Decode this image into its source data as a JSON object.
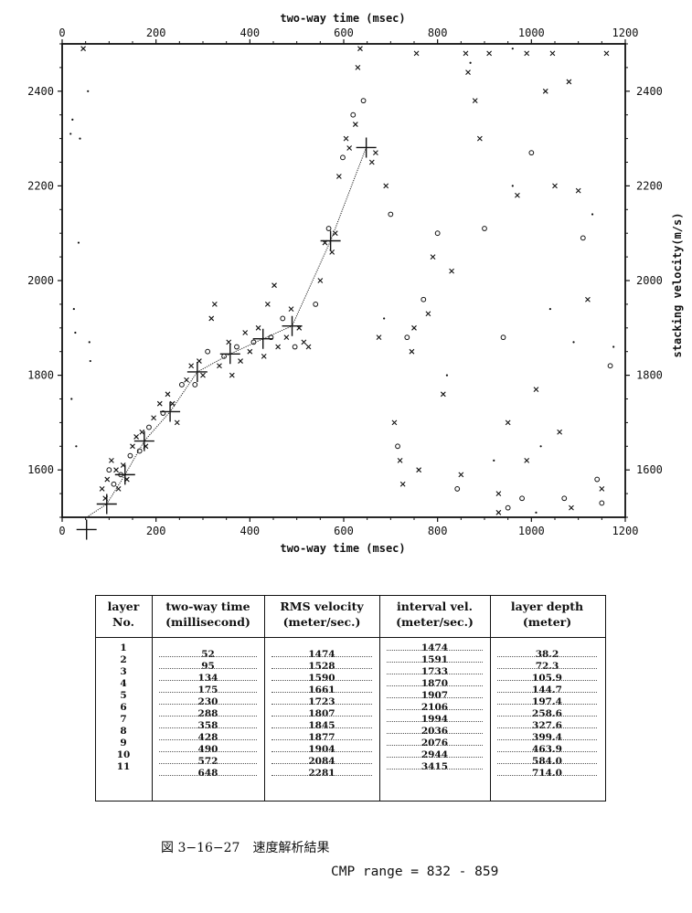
{
  "chart_data": {
    "type": "scatter",
    "xlabel_top": "two-way time (msec)",
    "xlabel_bottom": "two-way time (msec)",
    "ylabel_right": "stacking velocity(m/s)",
    "xlim": [
      0,
      1200
    ],
    "ylim": [
      1500,
      2500
    ],
    "x_ticks": [
      "0",
      "200",
      "400",
      "600",
      "800",
      "1000",
      "1200"
    ],
    "y_ticks_left": [
      "1600",
      "1800",
      "2000",
      "2200",
      "2400"
    ],
    "y_ticks_right": [
      "1600",
      "1800",
      "2000",
      "2200",
      "2400"
    ],
    "picked_velocity_function": {
      "time_ms": [
        52,
        95,
        134,
        175,
        230,
        288,
        358,
        428,
        490,
        572,
        648
      ],
      "rms_velocity": [
        1474,
        1528,
        1590,
        1661,
        1723,
        1807,
        1845,
        1877,
        1904,
        2084,
        2281
      ]
    },
    "semblance_points": [
      {
        "t": 18,
        "v": 2310,
        "m": "dot"
      },
      {
        "t": 22,
        "v": 2340,
        "m": "dot"
      },
      {
        "t": 25,
        "v": 1940,
        "m": "dot"
      },
      {
        "t": 28,
        "v": 1890,
        "m": "dot"
      },
      {
        "t": 30,
        "v": 1650,
        "m": "dot"
      },
      {
        "t": 35,
        "v": 2080,
        "m": "dot"
      },
      {
        "t": 38,
        "v": 2300,
        "m": "dot"
      },
      {
        "t": 45,
        "v": 2490,
        "m": "x"
      },
      {
        "t": 55,
        "v": 2400,
        "m": "dot"
      },
      {
        "t": 58,
        "v": 1870,
        "m": "dot"
      },
      {
        "t": 60,
        "v": 1830,
        "m": "dot"
      },
      {
        "t": 20,
        "v": 1750,
        "m": "dot"
      },
      {
        "t": 85,
        "v": 1560,
        "m": "x"
      },
      {
        "t": 92,
        "v": 1540,
        "m": "x"
      },
      {
        "t": 96,
        "v": 1580,
        "m": "x"
      },
      {
        "t": 100,
        "v": 1600,
        "m": "o"
      },
      {
        "t": 105,
        "v": 1620,
        "m": "x"
      },
      {
        "t": 110,
        "v": 1570,
        "m": "o"
      },
      {
        "t": 115,
        "v": 1600,
        "m": "x"
      },
      {
        "t": 120,
        "v": 1560,
        "m": "x"
      },
      {
        "t": 125,
        "v": 1590,
        "m": "o"
      },
      {
        "t": 130,
        "v": 1610,
        "m": "x"
      },
      {
        "t": 138,
        "v": 1580,
        "m": "x"
      },
      {
        "t": 145,
        "v": 1630,
        "m": "o"
      },
      {
        "t": 150,
        "v": 1650,
        "m": "x"
      },
      {
        "t": 158,
        "v": 1670,
        "m": "x"
      },
      {
        "t": 165,
        "v": 1640,
        "m": "o"
      },
      {
        "t": 170,
        "v": 1680,
        "m": "x"
      },
      {
        "t": 178,
        "v": 1650,
        "m": "x"
      },
      {
        "t": 185,
        "v": 1690,
        "m": "o"
      },
      {
        "t": 195,
        "v": 1710,
        "m": "x"
      },
      {
        "t": 208,
        "v": 1740,
        "m": "x"
      },
      {
        "t": 215,
        "v": 1720,
        "m": "o"
      },
      {
        "t": 225,
        "v": 1760,
        "m": "x"
      },
      {
        "t": 235,
        "v": 1740,
        "m": "x"
      },
      {
        "t": 245,
        "v": 1700,
        "m": "x"
      },
      {
        "t": 255,
        "v": 1780,
        "m": "o"
      },
      {
        "t": 265,
        "v": 1790,
        "m": "x"
      },
      {
        "t": 275,
        "v": 1820,
        "m": "x"
      },
      {
        "t": 283,
        "v": 1780,
        "m": "o"
      },
      {
        "t": 292,
        "v": 1830,
        "m": "x"
      },
      {
        "t": 300,
        "v": 1800,
        "m": "x"
      },
      {
        "t": 310,
        "v": 1850,
        "m": "o"
      },
      {
        "t": 318,
        "v": 1920,
        "m": "x"
      },
      {
        "t": 325,
        "v": 1950,
        "m": "x"
      },
      {
        "t": 335,
        "v": 1820,
        "m": "x"
      },
      {
        "t": 345,
        "v": 1840,
        "m": "o"
      },
      {
        "t": 355,
        "v": 1870,
        "m": "x"
      },
      {
        "t": 362,
        "v": 1800,
        "m": "x"
      },
      {
        "t": 372,
        "v": 1860,
        "m": "o"
      },
      {
        "t": 380,
        "v": 1830,
        "m": "x"
      },
      {
        "t": 390,
        "v": 1890,
        "m": "x"
      },
      {
        "t": 400,
        "v": 1850,
        "m": "x"
      },
      {
        "t": 408,
        "v": 1870,
        "m": "o"
      },
      {
        "t": 418,
        "v": 1900,
        "m": "x"
      },
      {
        "t": 430,
        "v": 1840,
        "m": "x"
      },
      {
        "t": 438,
        "v": 1950,
        "m": "x"
      },
      {
        "t": 445,
        "v": 1880,
        "m": "o"
      },
      {
        "t": 452,
        "v": 1990,
        "m": "x"
      },
      {
        "t": 460,
        "v": 1860,
        "m": "x"
      },
      {
        "t": 470,
        "v": 1920,
        "m": "o"
      },
      {
        "t": 478,
        "v": 1880,
        "m": "x"
      },
      {
        "t": 488,
        "v": 1940,
        "m": "x"
      },
      {
        "t": 496,
        "v": 1860,
        "m": "o"
      },
      {
        "t": 505,
        "v": 1900,
        "m": "x"
      },
      {
        "t": 515,
        "v": 1870,
        "m": "x"
      },
      {
        "t": 525,
        "v": 1860,
        "m": "x"
      },
      {
        "t": 540,
        "v": 1950,
        "m": "o"
      },
      {
        "t": 550,
        "v": 2000,
        "m": "x"
      },
      {
        "t": 560,
        "v": 2080,
        "m": "x"
      },
      {
        "t": 568,
        "v": 2110,
        "m": "o"
      },
      {
        "t": 575,
        "v": 2060,
        "m": "x"
      },
      {
        "t": 582,
        "v": 2100,
        "m": "x"
      },
      {
        "t": 590,
        "v": 2220,
        "m": "x"
      },
      {
        "t": 598,
        "v": 2260,
        "m": "o"
      },
      {
        "t": 605,
        "v": 2300,
        "m": "x"
      },
      {
        "t": 612,
        "v": 2280,
        "m": "x"
      },
      {
        "t": 620,
        "v": 2350,
        "m": "o"
      },
      {
        "t": 625,
        "v": 2330,
        "m": "x"
      },
      {
        "t": 630,
        "v": 2450,
        "m": "x"
      },
      {
        "t": 635,
        "v": 2490,
        "m": "x"
      },
      {
        "t": 642,
        "v": 2380,
        "m": "o"
      },
      {
        "t": 660,
        "v": 2250,
        "m": "x"
      },
      {
        "t": 668,
        "v": 2270,
        "m": "x"
      },
      {
        "t": 690,
        "v": 2200,
        "m": "x"
      },
      {
        "t": 700,
        "v": 2140,
        "m": "o"
      },
      {
        "t": 708,
        "v": 1700,
        "m": "x"
      },
      {
        "t": 715,
        "v": 1650,
        "m": "o"
      },
      {
        "t": 720,
        "v": 1620,
        "m": "x"
      },
      {
        "t": 726,
        "v": 1570,
        "m": "x"
      },
      {
        "t": 735,
        "v": 1880,
        "m": "o"
      },
      {
        "t": 745,
        "v": 1850,
        "m": "x"
      },
      {
        "t": 755,
        "v": 2480,
        "m": "x"
      },
      {
        "t": 760,
        "v": 1600,
        "m": "x"
      },
      {
        "t": 770,
        "v": 1960,
        "m": "o"
      },
      {
        "t": 780,
        "v": 1930,
        "m": "x"
      },
      {
        "t": 790,
        "v": 2050,
        "m": "x"
      },
      {
        "t": 800,
        "v": 2100,
        "m": "o"
      },
      {
        "t": 812,
        "v": 1760,
        "m": "x"
      },
      {
        "t": 820,
        "v": 1800,
        "m": "dot"
      },
      {
        "t": 830,
        "v": 2020,
        "m": "x"
      },
      {
        "t": 842,
        "v": 1560,
        "m": "o"
      },
      {
        "t": 850,
        "v": 1590,
        "m": "x"
      },
      {
        "t": 860,
        "v": 2480,
        "m": "x"
      },
      {
        "t": 870,
        "v": 2460,
        "m": "dot"
      },
      {
        "t": 880,
        "v": 2380,
        "m": "x"
      },
      {
        "t": 890,
        "v": 2300,
        "m": "x"
      },
      {
        "t": 900,
        "v": 2110,
        "m": "o"
      },
      {
        "t": 910,
        "v": 2480,
        "m": "x"
      },
      {
        "t": 920,
        "v": 1620,
        "m": "dot"
      },
      {
        "t": 930,
        "v": 1550,
        "m": "x"
      },
      {
        "t": 940,
        "v": 1880,
        "m": "o"
      },
      {
        "t": 950,
        "v": 1700,
        "m": "x"
      },
      {
        "t": 960,
        "v": 2200,
        "m": "dot"
      },
      {
        "t": 970,
        "v": 2180,
        "m": "x"
      },
      {
        "t": 980,
        "v": 1540,
        "m": "o"
      },
      {
        "t": 990,
        "v": 1620,
        "m": "x"
      },
      {
        "t": 1000,
        "v": 2270,
        "m": "o"
      },
      {
        "t": 1010,
        "v": 1770,
        "m": "x"
      },
      {
        "t": 1020,
        "v": 1650,
        "m": "dot"
      },
      {
        "t": 1030,
        "v": 2400,
        "m": "x"
      },
      {
        "t": 1040,
        "v": 1940,
        "m": "dot"
      },
      {
        "t": 1050,
        "v": 2200,
        "m": "x"
      },
      {
        "t": 1060,
        "v": 1680,
        "m": "x"
      },
      {
        "t": 1070,
        "v": 1540,
        "m": "o"
      },
      {
        "t": 1080,
        "v": 2420,
        "m": "x"
      },
      {
        "t": 1090,
        "v": 1870,
        "m": "dot"
      },
      {
        "t": 1100,
        "v": 2190,
        "m": "x"
      },
      {
        "t": 1110,
        "v": 2090,
        "m": "o"
      },
      {
        "t": 1120,
        "v": 1960,
        "m": "x"
      },
      {
        "t": 1130,
        "v": 2140,
        "m": "dot"
      },
      {
        "t": 1140,
        "v": 1580,
        "m": "o"
      },
      {
        "t": 1150,
        "v": 1560,
        "m": "x"
      },
      {
        "t": 1160,
        "v": 2480,
        "m": "x"
      },
      {
        "t": 1168,
        "v": 1820,
        "m": "o"
      },
      {
        "t": 1175,
        "v": 1860,
        "m": "dot"
      },
      {
        "t": 1045,
        "v": 2480,
        "m": "x"
      },
      {
        "t": 990,
        "v": 2480,
        "m": "x"
      },
      {
        "t": 960,
        "v": 2490,
        "m": "dot"
      },
      {
        "t": 865,
        "v": 2440,
        "m": "x"
      },
      {
        "t": 930,
        "v": 1510,
        "m": "x"
      },
      {
        "t": 950,
        "v": 1520,
        "m": "o"
      },
      {
        "t": 1010,
        "v": 1510,
        "m": "dot"
      },
      {
        "t": 1085,
        "v": 1520,
        "m": "x"
      },
      {
        "t": 1150,
        "v": 1530,
        "m": "o"
      },
      {
        "t": 675,
        "v": 1880,
        "m": "x"
      },
      {
        "t": 686,
        "v": 1920,
        "m": "dot"
      },
      {
        "t": 750,
        "v": 1900,
        "m": "x"
      }
    ]
  },
  "table": {
    "headers": [
      {
        "line1": "layer",
        "line2": "No."
      },
      {
        "line1": "two-way time",
        "line2": "(millisecond)"
      },
      {
        "line1": "RMS velocity",
        "line2": "(meter/sec.)"
      },
      {
        "line1": "interval vel.",
        "line2": "(meter/sec.)"
      },
      {
        "line1": "layer depth",
        "line2": "(meter)"
      }
    ],
    "layer_no": [
      "1",
      "2",
      "3",
      "4",
      "5",
      "6",
      "7",
      "8",
      "9",
      "10",
      "11"
    ],
    "two_way_time": [
      "52",
      "95",
      "134",
      "175",
      "230",
      "288",
      "358",
      "428",
      "490",
      "572",
      "648"
    ],
    "rms_velocity": [
      "1474",
      "1528",
      "1590",
      "1661",
      "1723",
      "1807",
      "1845",
      "1877",
      "1904",
      "2084",
      "2281"
    ],
    "interval_vel": [
      "1474",
      "1591",
      "1733",
      "1870",
      "1907",
      "2106",
      "1994",
      "2036",
      "2076",
      "2944",
      "3415"
    ],
    "layer_depth": [
      "38.2",
      "72.3",
      "105.9",
      "144.7",
      "197.4",
      "258.6",
      "327.6",
      "399.4",
      "463.9",
      "584.0",
      "714.0"
    ]
  },
  "caption": "図 3−16−27　速度解析結果",
  "cmp_range": "CMP range = 832 - 859"
}
